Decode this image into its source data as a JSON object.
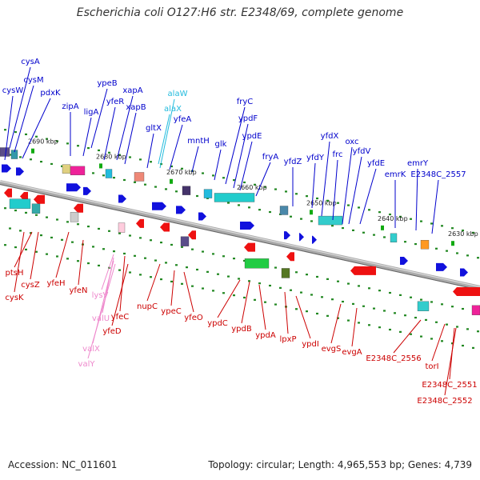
{
  "title": "Escherichia coli O127:H6 str. E2348/69, complete genome",
  "footer": {
    "accession": "Accession: NC_011601",
    "summary": "Topology: circular; Length: 4,965,553 bp; Genes: 4,739"
  },
  "colors": {
    "forward_label": "#0000cc",
    "reverse_label": "#cc0000",
    "rna_forward_label": "#22bbdd",
    "rna_reverse_label": "#ee88cc",
    "forward_arrow": "#1111dd",
    "reverse_arrow": "#ee1111",
    "backbone": "#888888",
    "tick": "#228822"
  },
  "scale_labels": [
    "2690 kbp",
    "2680 kbp",
    "2670 kbp",
    "2660 kbp",
    "2650 kbp",
    "2640 kbp",
    "2630 kbp"
  ],
  "forward_genes": [
    "cysA",
    "cysW",
    "cysM",
    "pdxK",
    "ypeB",
    "zipA",
    "ligA",
    "yfeR",
    "xapA",
    "xapB",
    "gltX",
    "yfeA",
    "mntH",
    "glk",
    "fryC",
    "ypdF",
    "ypdE",
    "fryA",
    "yfdZ",
    "yfdY",
    "yfdX",
    "frc",
    "oxc",
    "yfdV",
    "yfdE",
    "emrK",
    "emrY",
    "E2348C_2557"
  ],
  "forward_rna_genes": [
    "alaW",
    "alaX"
  ],
  "reverse_genes": [
    "ptsH",
    "cysZ",
    "cysK",
    "yfeH",
    "yfeN",
    "yfeC",
    "yfeD",
    "nupC",
    "ypeC",
    "yfeO",
    "ypdC",
    "ypdB",
    "ypdA",
    "lpxP",
    "ypdI",
    "evgS",
    "evgA",
    "E2348C_2556",
    "torI",
    "E2348C_2551",
    "E2348C_2552"
  ],
  "reverse_rna_genes": [
    "lysV",
    "valU",
    "valX",
    "valY"
  ]
}
